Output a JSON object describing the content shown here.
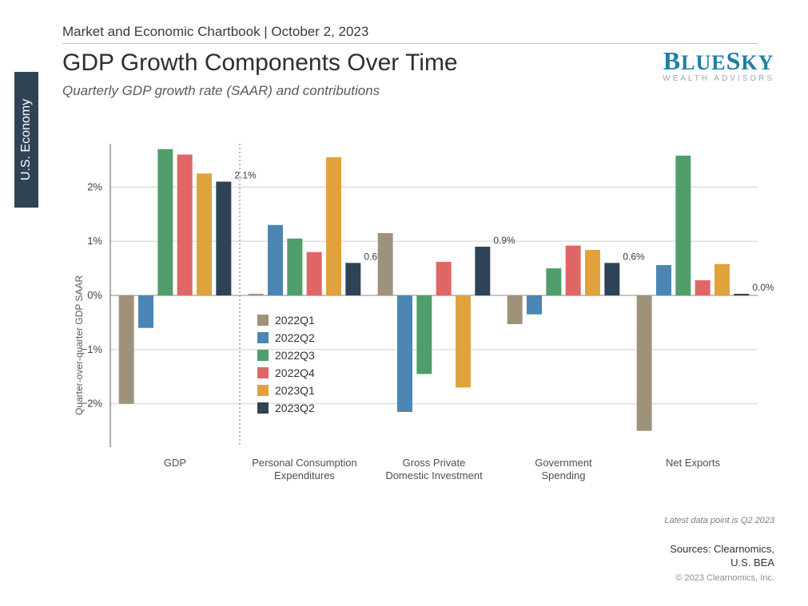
{
  "header": "Market and Economic Chartbook | October 2, 2023",
  "section_tab": "U.S. Economy",
  "title": "GDP Growth Components Over Time",
  "subtitle": "Quarterly GDP growth rate (SAAR) and contributions",
  "brand": {
    "name": "BLUESKY",
    "tagline": "WEALTH ADVISORS"
  },
  "chart": {
    "type": "grouped-bar",
    "ylabel": "Quarter-over-quarter GDP SAAR",
    "ylim": [
      -2.8,
      2.8
    ],
    "yticks": [
      -2,
      -1,
      0,
      1,
      2
    ],
    "ytick_labels": [
      "−2%",
      "−1%",
      "0%",
      "1%",
      "2%"
    ],
    "grid_color": "#d0d0d0",
    "axis_color": "#555b62",
    "background": "#ffffff",
    "label_fontsize": 12,
    "tick_fontsize": 13,
    "categories": [
      "GDP",
      "Personal Consumption\nExpenditures",
      "Gross Private\nDomestic Investment",
      "Government\nSpending",
      "Net Exports"
    ],
    "series": [
      {
        "name": "2022Q1",
        "color": "#9f927b"
      },
      {
        "name": "2022Q2",
        "color": "#4b86b4"
      },
      {
        "name": "2022Q3",
        "color": "#4f9e6b"
      },
      {
        "name": "2022Q4",
        "color": "#e06666"
      },
      {
        "name": "2023Q1",
        "color": "#e0a23c"
      },
      {
        "name": "2023Q2",
        "color": "#2f4356"
      }
    ],
    "values": [
      [
        -2.0,
        -0.6,
        2.7,
        2.6,
        2.25,
        2.1
      ],
      [
        0.03,
        1.3,
        1.05,
        0.8,
        2.55,
        0.6
      ],
      [
        1.15,
        -2.15,
        -1.45,
        0.62,
        -1.7,
        0.9
      ],
      [
        -0.53,
        -0.35,
        0.5,
        0.92,
        0.84,
        0.6
      ],
      [
        -2.5,
        0.56,
        2.58,
        0.28,
        0.58,
        0.03
      ]
    ],
    "last_bar_labels": [
      "2.1%",
      "0.6%",
      "0.9%",
      "0.6%",
      "0.0%"
    ],
    "divider_after_group": 0,
    "bar_width_ratio": 0.78,
    "latest_note": "Latest data point is Q2 2023",
    "legend_pos_group": 1
  },
  "footer": {
    "sources_line1": "Sources: Clearnomics,",
    "sources_line2": "U.S. BEA",
    "copyright": "© 2023 Clearnomics, Inc."
  }
}
